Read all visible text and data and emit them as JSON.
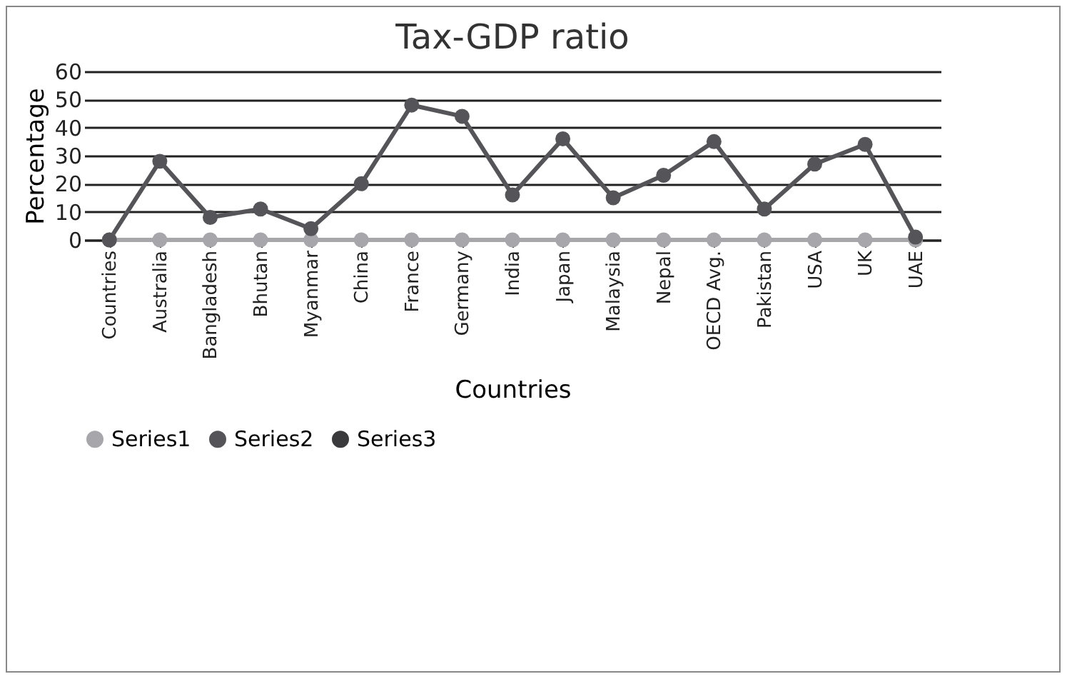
{
  "chart_data": {
    "type": "line",
    "title": "Tax-GDP ratio",
    "xlabel": "Countries",
    "ylabel": "Percentage",
    "categories": [
      "Countries",
      "Australia",
      "Bangladesh",
      "Bhutan",
      "Myanmar",
      "China",
      "France",
      "Germany",
      "India",
      "Japan",
      "Malaysia",
      "Nepal",
      "OECD Avg.",
      "Pakistan",
      "USA",
      "UK",
      "UAE"
    ],
    "series": [
      {
        "name": "Series1",
        "color": "#a6a6ab",
        "values": [
          0,
          0,
          0,
          0,
          0,
          0,
          0,
          0,
          0,
          0,
          0,
          0,
          0,
          0,
          0,
          0,
          0
        ]
      },
      {
        "name": "Series2",
        "color": "#555559",
        "values": [
          0,
          28,
          8,
          11,
          4,
          20,
          48,
          44,
          16,
          36,
          15,
          23,
          35,
          11,
          27,
          34,
          1
        ]
      },
      {
        "name": "Series3",
        "color": "#3a3a3c",
        "values": [
          null,
          null,
          null,
          null,
          null,
          null,
          null,
          null,
          null,
          null,
          null,
          null,
          null,
          null,
          null,
          null,
          null
        ]
      }
    ],
    "ylim": [
      0,
      60
    ],
    "yticks": [
      0,
      10,
      20,
      30,
      40,
      50,
      60
    ],
    "grid": "y",
    "legend": "bottom",
    "marker": "circle",
    "line_style": "solid"
  }
}
